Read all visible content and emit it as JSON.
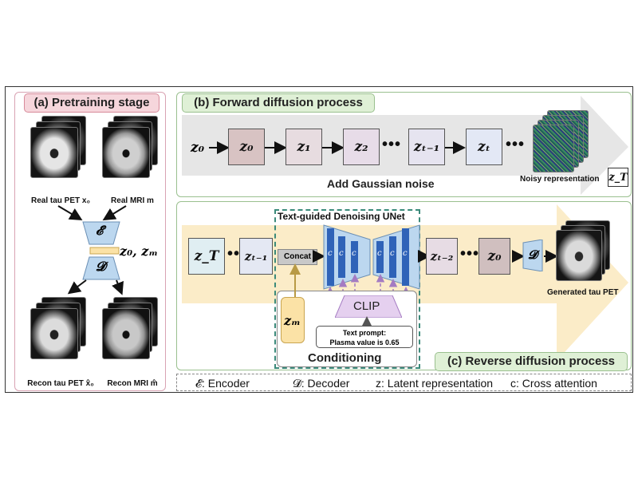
{
  "panels": {
    "a": {
      "title": "(a) Pretraining stage"
    },
    "b": {
      "title": "(b) Forward diffusion process"
    },
    "c": {
      "title": "(c) Reverse diffusion process"
    }
  },
  "pretraining": {
    "real_tau_label": "Real tau PET x₀",
    "real_mri_label": "Real MRI m",
    "encoder_symbol": "𝓔",
    "decoder_symbol": "𝓓",
    "latent_label": "z₀, zₘ",
    "recon_tau_label": "Recon tau PET x̂₀",
    "recon_mri_label": "Recon MRI m̂"
  },
  "forward": {
    "input": "z₀",
    "steps": [
      "z₀",
      "z₁",
      "z₂",
      "zₜ₋₁",
      "zₜ"
    ],
    "dots": "•••",
    "caption": "Add Gaussian noise",
    "noisy_label": "Noisy representation",
    "noisy_symbol": "z_T"
  },
  "reverse": {
    "zT": "z_T",
    "zt1": "zₜ₋₁",
    "dots": "•••",
    "concat": "Concat",
    "unet_title": "Text-guided Denoising UNet",
    "c_symbol": "c",
    "zt2": "zₜ₋₂",
    "z0": "z₀",
    "decoder_symbol": "𝓓",
    "generated_label": "Generated tau PET",
    "zm": "zₘ",
    "clip": "CLIP",
    "prompt_line1": "Text prompt:",
    "prompt_line2": "Plasma value is 0.65",
    "conditioning": "Conditioning"
  },
  "legend": {
    "encoder": "𝓔: Encoder",
    "decoder": "𝓓: Decoder",
    "latent": "z: Latent representation",
    "cross": "c: Cross attention"
  },
  "colors": {
    "step_fill": [
      "#d8c3c3",
      "#e7dce0",
      "#e7dce8",
      "#e6e4f0",
      "#e3e8f5"
    ],
    "unet_blue": "#2f63b8",
    "unet_trap": "#bcd7ef",
    "forward_band": "#e5e5e5",
    "reverse_band": "#fbecc8",
    "clip_fill": "#e5d0ef"
  }
}
